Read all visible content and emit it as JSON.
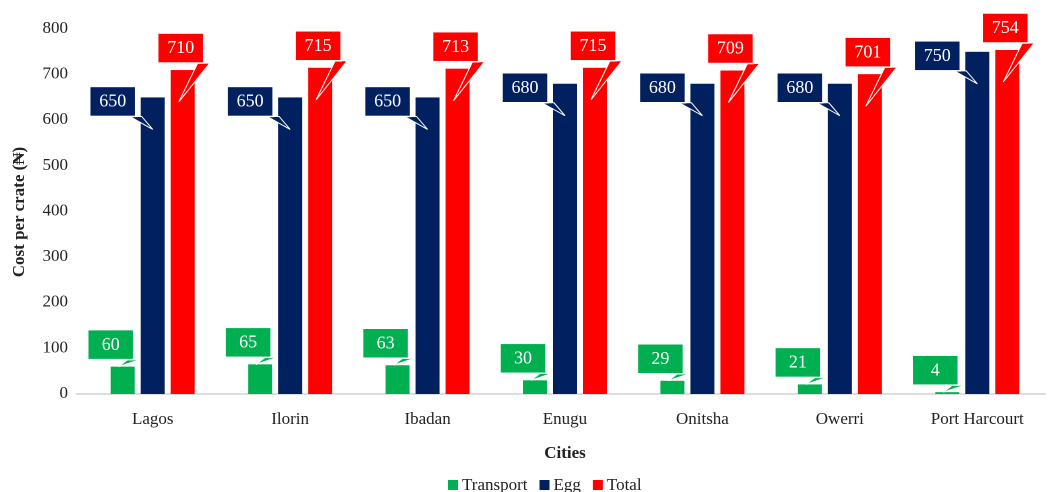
{
  "chart_data": {
    "type": "bar",
    "y_label": "Cost per crate (₦)",
    "x_label": "Cities",
    "categories": [
      "Lagos",
      "Ilorin",
      "Ibadan",
      "Enugu",
      "Onitsha",
      "Owerri",
      "Port Harcourt"
    ],
    "series": [
      {
        "name": "Transport",
        "color": "#00b050",
        "values": [
          60,
          65,
          63,
          30,
          29,
          21,
          4
        ]
      },
      {
        "name": "Egg",
        "color": "#002060",
        "values": [
          650,
          650,
          650,
          680,
          680,
          680,
          750
        ]
      },
      {
        "name": "Total",
        "color": "#ff0000",
        "values": [
          710,
          715,
          713,
          715,
          709,
          701,
          754
        ]
      }
    ],
    "ylim": [
      0,
      800
    ],
    "yticks": [
      0,
      100,
      200,
      300,
      400,
      500,
      600,
      700,
      800
    ],
    "grid": false,
    "legend": "bottom"
  }
}
